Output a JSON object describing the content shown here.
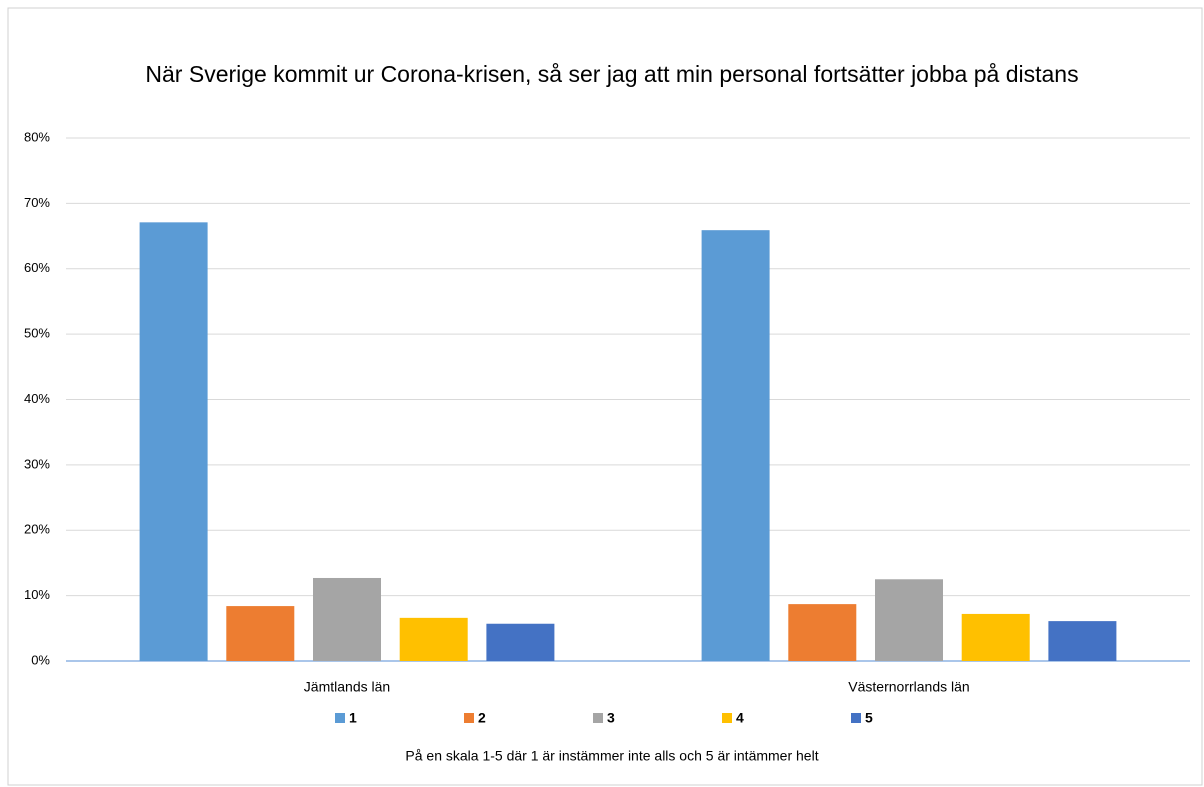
{
  "chart_data": {
    "type": "bar",
    "title": "När Sverige kommit ur Corona-krisen, så ser jag att min personal fortsätter jobba på distans",
    "x_label": "På en skala 1-5 där 1 är instämmer inte alls och 5 är intämmer helt",
    "categories": [
      "Jämtlands län",
      "Västernorrlands län"
    ],
    "series": [
      {
        "name": "1",
        "color": "#5b9bd5",
        "values": [
          67.1,
          65.9
        ]
      },
      {
        "name": "2",
        "color": "#ed7d31",
        "values": [
          8.4,
          8.7
        ]
      },
      {
        "name": "3",
        "color": "#a5a5a5",
        "values": [
          12.7,
          12.5
        ]
      },
      {
        "name": "4",
        "color": "#ffc000",
        "values": [
          6.6,
          7.2
        ]
      },
      {
        "name": "5",
        "color": "#4472c4",
        "values": [
          5.7,
          6.1
        ]
      }
    ],
    "ylim": [
      0,
      80
    ],
    "yticks": [
      {
        "value": 0,
        "label": "0%"
      },
      {
        "value": 10,
        "label": "10%"
      },
      {
        "value": 20,
        "label": "20%"
      },
      {
        "value": 30,
        "label": "30%"
      },
      {
        "value": 40,
        "label": "40%"
      },
      {
        "value": 50,
        "label": "50%"
      },
      {
        "value": 60,
        "label": "60%"
      },
      {
        "value": 70,
        "label": "70%"
      },
      {
        "value": 80,
        "label": "80%"
      }
    ],
    "grid": true,
    "legend": "bottom"
  }
}
